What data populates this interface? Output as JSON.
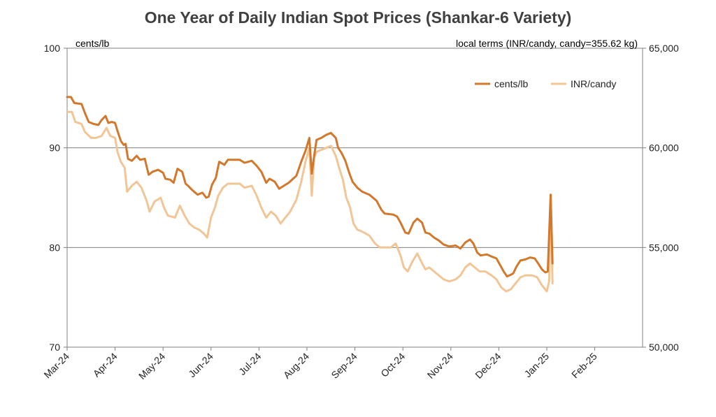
{
  "chart_data": {
    "type": "line",
    "title": "One Year of Daily Indian Spot Prices (Shankar-6 Variety)",
    "left_axis": {
      "label": "cents/lb",
      "ylim": [
        70,
        100
      ],
      "ticks": [
        "70",
        "80",
        "90",
        "100"
      ]
    },
    "right_axis": {
      "label": "local terms (INR/candy, candy=355.62 kg)",
      "ylim": [
        50000,
        65000
      ],
      "ticks": [
        "50,000",
        "55,000",
        "60,000",
        "65,000"
      ]
    },
    "x_ticks": [
      "Mar-24",
      "Apr-24",
      "May-24",
      "Jun-24",
      "Jul-24",
      "Aug-24",
      "Sep-24",
      "Oct-24",
      "Nov-24",
      "Dec-24",
      "Jan-25",
      "Feb-25"
    ],
    "grid": "horizontal",
    "legend_position": "top-right",
    "series": [
      {
        "name": "cents/lb",
        "axis": "left",
        "color": "#d2782d",
        "points": [
          [
            0,
            95.1
          ],
          [
            0.08,
            95.1
          ],
          [
            0.15,
            94.5
          ],
          [
            0.3,
            94.4
          ],
          [
            0.37,
            93.5
          ],
          [
            0.45,
            92.6
          ],
          [
            0.55,
            92.4
          ],
          [
            0.65,
            92.3
          ],
          [
            0.72,
            92.8
          ],
          [
            0.8,
            93.2
          ],
          [
            0.86,
            92.5
          ],
          [
            0.93,
            92.6
          ],
          [
            1.0,
            92.5
          ],
          [
            1.05,
            91.7
          ],
          [
            1.12,
            90.7
          ],
          [
            1.18,
            90.3
          ],
          [
            1.22,
            90.4
          ],
          [
            1.27,
            88.9
          ],
          [
            1.35,
            88.7
          ],
          [
            1.45,
            89.2
          ],
          [
            1.52,
            88.8
          ],
          [
            1.62,
            88.9
          ],
          [
            1.7,
            87.3
          ],
          [
            1.78,
            87.6
          ],
          [
            1.9,
            87.8
          ],
          [
            2.0,
            87.5
          ],
          [
            2.05,
            86.9
          ],
          [
            2.15,
            86.8
          ],
          [
            2.22,
            86.5
          ],
          [
            2.3,
            87.9
          ],
          [
            2.4,
            87.6
          ],
          [
            2.47,
            86.4
          ],
          [
            2.52,
            86.2
          ],
          [
            2.6,
            85.8
          ],
          [
            2.72,
            85.3
          ],
          [
            2.82,
            85.5
          ],
          [
            2.9,
            85.0
          ],
          [
            2.95,
            85.1
          ],
          [
            3.02,
            86.3
          ],
          [
            3.1,
            87.0
          ],
          [
            3.17,
            88.6
          ],
          [
            3.28,
            88.3
          ],
          [
            3.35,
            88.8
          ],
          [
            3.6,
            88.8
          ],
          [
            3.7,
            88.5
          ],
          [
            3.85,
            88.7
          ],
          [
            3.95,
            88.2
          ],
          [
            4.05,
            87.6
          ],
          [
            4.15,
            86.5
          ],
          [
            4.22,
            86.9
          ],
          [
            4.33,
            86.6
          ],
          [
            4.42,
            85.9
          ],
          [
            4.52,
            86.2
          ],
          [
            4.62,
            86.5
          ],
          [
            4.78,
            87.2
          ],
          [
            4.88,
            88.6
          ],
          [
            4.97,
            89.7
          ],
          [
            5.05,
            91.0
          ],
          [
            5.1,
            87.4
          ],
          [
            5.15,
            89.2
          ],
          [
            5.2,
            90.8
          ],
          [
            5.3,
            91.0
          ],
          [
            5.4,
            91.3
          ],
          [
            5.5,
            91.5
          ],
          [
            5.6,
            91.0
          ],
          [
            5.65,
            90.0
          ],
          [
            5.72,
            89.5
          ],
          [
            5.8,
            88.7
          ],
          [
            5.88,
            87.5
          ],
          [
            5.95,
            86.6
          ],
          [
            6.05,
            86.0
          ],
          [
            6.15,
            85.6
          ],
          [
            6.3,
            85.3
          ],
          [
            6.45,
            84.7
          ],
          [
            6.55,
            83.8
          ],
          [
            6.62,
            83.4
          ],
          [
            6.8,
            83.3
          ],
          [
            6.88,
            83.1
          ],
          [
            6.95,
            82.5
          ],
          [
            7.05,
            81.5
          ],
          [
            7.12,
            81.4
          ],
          [
            7.22,
            82.5
          ],
          [
            7.3,
            82.9
          ],
          [
            7.4,
            82.5
          ],
          [
            7.47,
            81.5
          ],
          [
            7.55,
            81.4
          ],
          [
            7.65,
            81.0
          ],
          [
            7.75,
            80.7
          ],
          [
            7.85,
            80.3
          ],
          [
            7.97,
            80.1
          ],
          [
            8.1,
            80.2
          ],
          [
            8.2,
            79.9
          ],
          [
            8.3,
            80.5
          ],
          [
            8.4,
            80.8
          ],
          [
            8.47,
            80.4
          ],
          [
            8.55,
            79.5
          ],
          [
            8.62,
            79.2
          ],
          [
            8.75,
            79.3
          ],
          [
            8.85,
            79.1
          ],
          [
            8.95,
            78.9
          ],
          [
            9.02,
            78.3
          ],
          [
            9.1,
            77.6
          ],
          [
            9.17,
            77.1
          ],
          [
            9.22,
            77.2
          ],
          [
            9.3,
            77.4
          ],
          [
            9.37,
            78.1
          ],
          [
            9.45,
            78.7
          ],
          [
            9.55,
            78.8
          ],
          [
            9.65,
            79.0
          ],
          [
            9.75,
            78.9
          ],
          [
            9.82,
            78.4
          ],
          [
            9.9,
            77.8
          ],
          [
            9.97,
            77.5
          ],
          [
            10.02,
            77.6
          ],
          [
            10.08,
            85.3
          ],
          [
            10.12,
            78.4
          ]
        ]
      },
      {
        "name": "INR/candy",
        "axis": "right",
        "color": "#f2c596",
        "points": [
          [
            0,
            61.8
          ],
          [
            0.1,
            61.8
          ],
          [
            0.17,
            61.3
          ],
          [
            0.3,
            61.2
          ],
          [
            0.37,
            60.8
          ],
          [
            0.5,
            60.5
          ],
          [
            0.6,
            60.5
          ],
          [
            0.72,
            60.6
          ],
          [
            0.82,
            61.0
          ],
          [
            0.9,
            60.6
          ],
          [
            1.0,
            60.5
          ],
          [
            1.05,
            59.8
          ],
          [
            1.12,
            59.3
          ],
          [
            1.2,
            59.0
          ],
          [
            1.25,
            57.8
          ],
          [
            1.35,
            58.1
          ],
          [
            1.45,
            58.3
          ],
          [
            1.55,
            58.0
          ],
          [
            1.65,
            57.4
          ],
          [
            1.72,
            56.8
          ],
          [
            1.82,
            57.3
          ],
          [
            1.95,
            57.5
          ],
          [
            2.02,
            57.0
          ],
          [
            2.1,
            56.6
          ],
          [
            2.25,
            56.5
          ],
          [
            2.35,
            57.1
          ],
          [
            2.45,
            56.6
          ],
          [
            2.55,
            56.2
          ],
          [
            2.65,
            56.0
          ],
          [
            2.75,
            55.9
          ],
          [
            2.85,
            55.7
          ],
          [
            2.92,
            55.5
          ],
          [
            3.0,
            56.5
          ],
          [
            3.08,
            57.0
          ],
          [
            3.15,
            57.6
          ],
          [
            3.25,
            58.0
          ],
          [
            3.35,
            58.2
          ],
          [
            3.6,
            58.2
          ],
          [
            3.7,
            58.0
          ],
          [
            3.85,
            58.1
          ],
          [
            3.95,
            57.6
          ],
          [
            4.05,
            57.0
          ],
          [
            4.15,
            56.5
          ],
          [
            4.25,
            56.8
          ],
          [
            4.35,
            56.6
          ],
          [
            4.45,
            56.2
          ],
          [
            4.55,
            56.5
          ],
          [
            4.65,
            56.8
          ],
          [
            4.78,
            57.4
          ],
          [
            4.88,
            58.3
          ],
          [
            4.97,
            59.3
          ],
          [
            5.05,
            60.0
          ],
          [
            5.1,
            57.6
          ],
          [
            5.15,
            59.5
          ],
          [
            5.2,
            59.8
          ],
          [
            5.3,
            59.9
          ],
          [
            5.4,
            60.0
          ],
          [
            5.5,
            60.1
          ],
          [
            5.6,
            59.6
          ],
          [
            5.67,
            59.0
          ],
          [
            5.75,
            58.4
          ],
          [
            5.82,
            57.5
          ],
          [
            5.9,
            57.0
          ],
          [
            5.97,
            56.2
          ],
          [
            6.05,
            55.9
          ],
          [
            6.15,
            55.8
          ],
          [
            6.3,
            55.6
          ],
          [
            6.42,
            55.2
          ],
          [
            6.52,
            55.0
          ],
          [
            6.75,
            55.0
          ],
          [
            6.85,
            55.2
          ],
          [
            6.95,
            54.6
          ],
          [
            7.02,
            54.0
          ],
          [
            7.1,
            53.8
          ],
          [
            7.2,
            54.3
          ],
          [
            7.3,
            54.7
          ],
          [
            7.38,
            54.3
          ],
          [
            7.47,
            53.9
          ],
          [
            7.55,
            54.0
          ],
          [
            7.65,
            53.8
          ],
          [
            7.75,
            53.6
          ],
          [
            7.85,
            53.4
          ],
          [
            7.97,
            53.3
          ],
          [
            8.1,
            53.4
          ],
          [
            8.2,
            53.6
          ],
          [
            8.3,
            54.0
          ],
          [
            8.4,
            54.2
          ],
          [
            8.5,
            54.0
          ],
          [
            8.6,
            53.8
          ],
          [
            8.72,
            53.8
          ],
          [
            8.85,
            53.6
          ],
          [
            8.95,
            53.4
          ],
          [
            9.05,
            53.0
          ],
          [
            9.15,
            52.8
          ],
          [
            9.25,
            52.9
          ],
          [
            9.35,
            53.2
          ],
          [
            9.45,
            53.5
          ],
          [
            9.55,
            53.6
          ],
          [
            9.7,
            53.6
          ],
          [
            9.8,
            53.5
          ],
          [
            9.9,
            53.1
          ],
          [
            10.0,
            52.8
          ],
          [
            10.05,
            53.3
          ],
          [
            10.08,
            57.5
          ],
          [
            10.12,
            53.2
          ]
        ]
      }
    ]
  }
}
